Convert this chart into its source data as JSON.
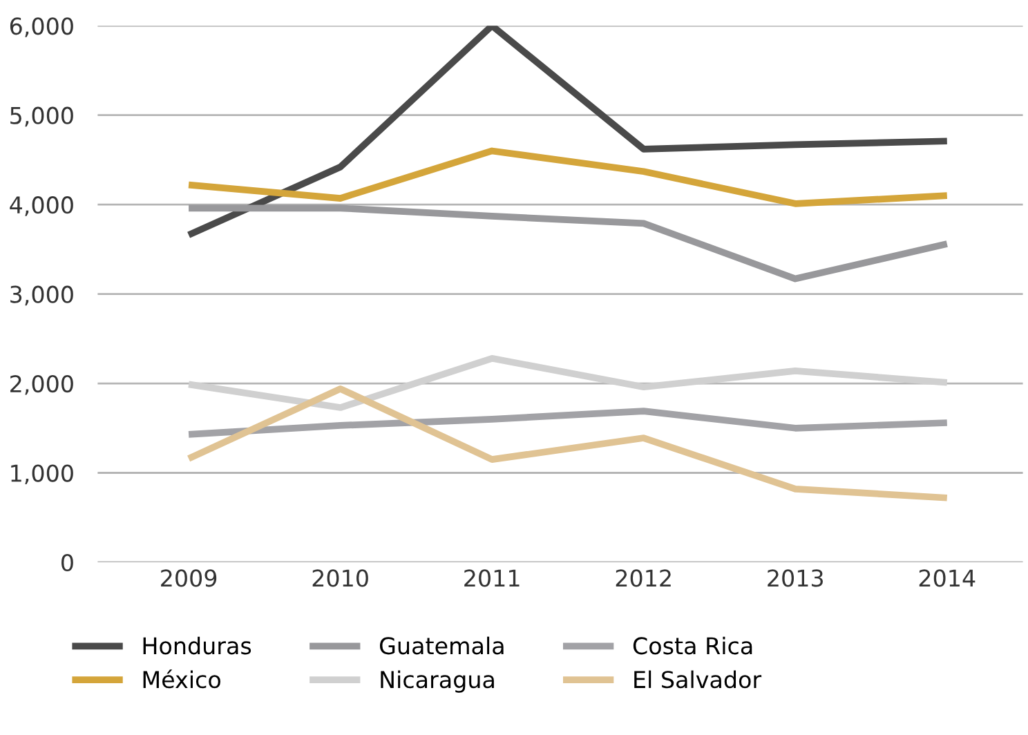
{
  "chart_data": {
    "type": "line",
    "categories": [
      "2009",
      "2010",
      "2011",
      "2012",
      "2013",
      "2014"
    ],
    "series": [
      {
        "name": "Honduras",
        "color": "#4a4a4a",
        "values": [
          3660,
          4420,
          6000,
          4620,
          4670,
          4710
        ]
      },
      {
        "name": "México",
        "color": "#d4a53a",
        "values": [
          4220,
          4070,
          4600,
          4370,
          4010,
          4100
        ]
      },
      {
        "name": "Guatemala",
        "color": "#98989b",
        "values": [
          3960,
          3960,
          3870,
          3790,
          3170,
          3560
        ]
      },
      {
        "name": "Nicaragua",
        "color": "#d0d0d0",
        "values": [
          1990,
          1730,
          2280,
          1960,
          2140,
          2010
        ]
      },
      {
        "name": "Costa Rica",
        "color": "#a2a2a6",
        "values": [
          1430,
          1530,
          1600,
          1690,
          1500,
          1560
        ]
      },
      {
        "name": "El Salvador",
        "color": "#e0c393",
        "values": [
          1160,
          1940,
          1150,
          1390,
          820,
          720
        ]
      }
    ],
    "ylim": [
      0,
      6000
    ],
    "yticks": [
      {
        "value": 0,
        "label": "0"
      },
      {
        "value": 1000,
        "label": "1,000"
      },
      {
        "value": 2000,
        "label": "2,000"
      },
      {
        "value": 3000,
        "label": "3,000"
      },
      {
        "value": 4000,
        "label": "4,000"
      },
      {
        "value": 5000,
        "label": "5,000"
      },
      {
        "value": 6000,
        "label": "6,000"
      }
    ],
    "grid": "y",
    "legend": "bottom",
    "marker": "none",
    "line_style": "solid"
  }
}
